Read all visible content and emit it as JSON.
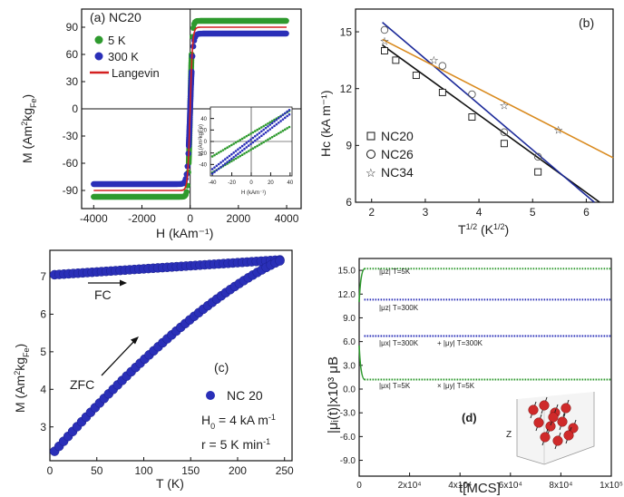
{
  "colors": {
    "green": "#2e9a2e",
    "blue": "#2a2fb8",
    "red": "#d42020",
    "navy": "#1c2a9a",
    "orange": "#d98a1e",
    "black": "#111111",
    "gray": "#666666"
  },
  "chart_data": [
    {
      "id": "a",
      "type": "scatter",
      "panel_label": "(a) NC20",
      "xlabel": "H (kAm⁻¹)",
      "ylabel_main": "M (Am",
      "ylabel_sup": "2",
      "ylabel_mid": "kg",
      "ylabel_sub": "Fe",
      "ylabel_end": ")",
      "xlim": [
        -4500,
        4600
      ],
      "ylim": [
        -110,
        110
      ],
      "xticks": [
        -4000,
        -2000,
        0,
        2000,
        4000
      ],
      "yticks": [
        -90,
        -60,
        -30,
        0,
        30,
        60,
        90
      ],
      "xtick_labels": [
        "-4000",
        "-2000",
        "0",
        "2000",
        "4000"
      ],
      "ytick_labels": [
        "-90",
        "-60",
        "-30",
        "0",
        "30",
        "60",
        "90"
      ],
      "legend_position": "top-left",
      "series": [
        {
          "name": "5 K",
          "color": "green",
          "marker": "circle",
          "ms": 97,
          "k": 0.012
        },
        {
          "name": "300 K",
          "color": "blue",
          "marker": "circle",
          "ms": 83,
          "k": 0.009
        },
        {
          "name": "Langevin",
          "color": "red",
          "marker": "line",
          "ms": 90,
          "k": 0.01
        }
      ],
      "inset": {
        "xlim": [
          -42,
          42
        ],
        "ylim": [
          -60,
          60
        ],
        "xticks": [
          -40,
          -20,
          0,
          20,
          40
        ],
        "yticks": [
          -40,
          -20,
          0,
          20,
          40
        ],
        "xtick_labels": [
          "-40",
          "-20",
          "0",
          "20",
          "40"
        ],
        "ytick_labels": [
          "-40",
          "-20",
          "0",
          "20",
          "40"
        ],
        "xlabel": "H (kAm⁻¹)",
        "ylabel": "M (Am²kgFe)",
        "series": [
          {
            "color": "green",
            "slope": 1.0,
            "coercivity": 14
          },
          {
            "color": "blue",
            "slope": 1.3,
            "coercivity": 3
          }
        ]
      }
    },
    {
      "id": "b",
      "type": "scatter",
      "panel_label": "(b)",
      "xlabel_main": "T",
      "xlabel_sup": "1/2",
      "xlabel_unit": " (K",
      "xlabel_unit_sup": "1/2",
      "xlabel_end": ")",
      "ylabel": "Hc (kA m⁻¹)",
      "xlim": [
        1.7,
        6.5
      ],
      "ylim": [
        6,
        16.2
      ],
      "xticks": [
        2,
        3,
        4,
        5,
        6
      ],
      "yticks": [
        6,
        9,
        12,
        15
      ],
      "xtick_labels": [
        "2",
        "3",
        "4",
        "5",
        "6"
      ],
      "ytick_labels": [
        "6",
        "9",
        "12",
        "15"
      ],
      "legend_position": "bottom-left",
      "series": [
        {
          "name": "NC20",
          "marker": "square",
          "color": "black",
          "x": [
            2.24,
            2.45,
            2.83,
            3.32,
            3.87,
            4.47,
            5.1
          ],
          "y": [
            14.0,
            13.5,
            12.7,
            11.8,
            10.5,
            9.1,
            7.6
          ],
          "fit": [
            [
              2.2,
              14.3
            ],
            [
              6.25,
              6.0
            ]
          ]
        },
        {
          "name": "NC26",
          "marker": "circle",
          "color": "navy",
          "x": [
            2.24,
            3.32,
            3.87,
            4.47,
            5.1
          ],
          "y": [
            15.1,
            13.2,
            11.7,
            9.7,
            8.4
          ],
          "fit": [
            [
              2.2,
              15.5
            ],
            [
              6.15,
              6.0
            ]
          ]
        },
        {
          "name": "NC34",
          "marker": "star",
          "color": "orange",
          "x": [
            2.24,
            3.16,
            4.47,
            5.48
          ],
          "y": [
            14.5,
            13.5,
            11.1,
            9.8
          ],
          "fit": [
            [
              2.2,
              14.6
            ],
            [
              6.5,
              8.35
            ]
          ]
        }
      ]
    },
    {
      "id": "c",
      "type": "scatter",
      "panel_label": "(c)",
      "xlabel": "T (K)",
      "ylabel_main": "M (Am",
      "ylabel_sup": "2",
      "ylabel_mid": "kg",
      "ylabel_sub": "Fe",
      "ylabel_end": ")",
      "xlim": [
        0,
        258
      ],
      "ylim": [
        2.1,
        7.7
      ],
      "xticks": [
        0,
        50,
        100,
        150,
        200,
        250
      ],
      "yticks": [
        3,
        4,
        5,
        6,
        7
      ],
      "xtick_labels": [
        "0",
        "50",
        "100",
        "150",
        "200",
        "250"
      ],
      "ytick_labels": [
        "3",
        "4",
        "5",
        "6",
        "7"
      ],
      "series": [
        {
          "name": "FC",
          "color": "blue",
          "x_start": 5,
          "x_end": 248,
          "y_start": 7.05,
          "y_end": 7.45
        },
        {
          "name": "ZFC",
          "color": "blue",
          "x_start": 5,
          "x_end": 248,
          "y_start": 2.35,
          "y_end": 7.45
        }
      ],
      "annotations": {
        "fc": "FC",
        "zfc": "ZFC",
        "legend": "NC 20",
        "h0_main": "H",
        "h0_sub": "0",
        "h0_val": " = 4 kA m",
        "h0_sup": "-1",
        "r_val": "r = 5 K min",
        "r_sup": "-1"
      }
    },
    {
      "id": "d",
      "type": "scatter",
      "panel_label": "(d)",
      "xlabel": "t[MCS]",
      "ylabel": "|μᵢ(t)|x10³ μB",
      "xlim": [
        0,
        100000
      ],
      "ylim": [
        -11,
        16.5
      ],
      "xticks": [
        0,
        20000,
        40000,
        60000,
        80000,
        100000
      ],
      "xtick_labels": [
        "0",
        "2x10⁴",
        "4x10⁴",
        "6x10⁴",
        "8x10⁴",
        "1x10⁵"
      ],
      "yticks": [
        -9,
        -6,
        -3,
        0,
        3,
        6,
        9,
        12,
        15
      ],
      "ytick_labels": [
        "-9.0",
        "-6.0",
        "-3.0",
        "0.0",
        "3.0",
        "6.0",
        "9.0",
        "12.0",
        "15.0"
      ],
      "series": [
        {
          "name": "|μz| T=5K",
          "color": "green",
          "y": 15.2
        },
        {
          "name": "|μz| T=300K",
          "color": "blue",
          "y": 11.3
        },
        {
          "name": "|μx| T=300K",
          "color": "blue",
          "y": 6.7
        },
        {
          "name": "|μy| T=300K",
          "color": "blue",
          "y": 6.7
        },
        {
          "name": "|μx| T=5K",
          "color": "green",
          "y": 1.2
        },
        {
          "name": "|μy| T=5K",
          "color": "green",
          "y": 1.2
        }
      ],
      "series_labels": {
        "z5": "|μz| T=5K",
        "z300": "|μz| T=300K",
        "x300": "|μx| T=300K",
        "y300": "+ |μy| T=300K",
        "x5": "|μx| T=5K",
        "y5": "× |μy| T=5K"
      },
      "inset_axis_label": "Z"
    }
  ]
}
